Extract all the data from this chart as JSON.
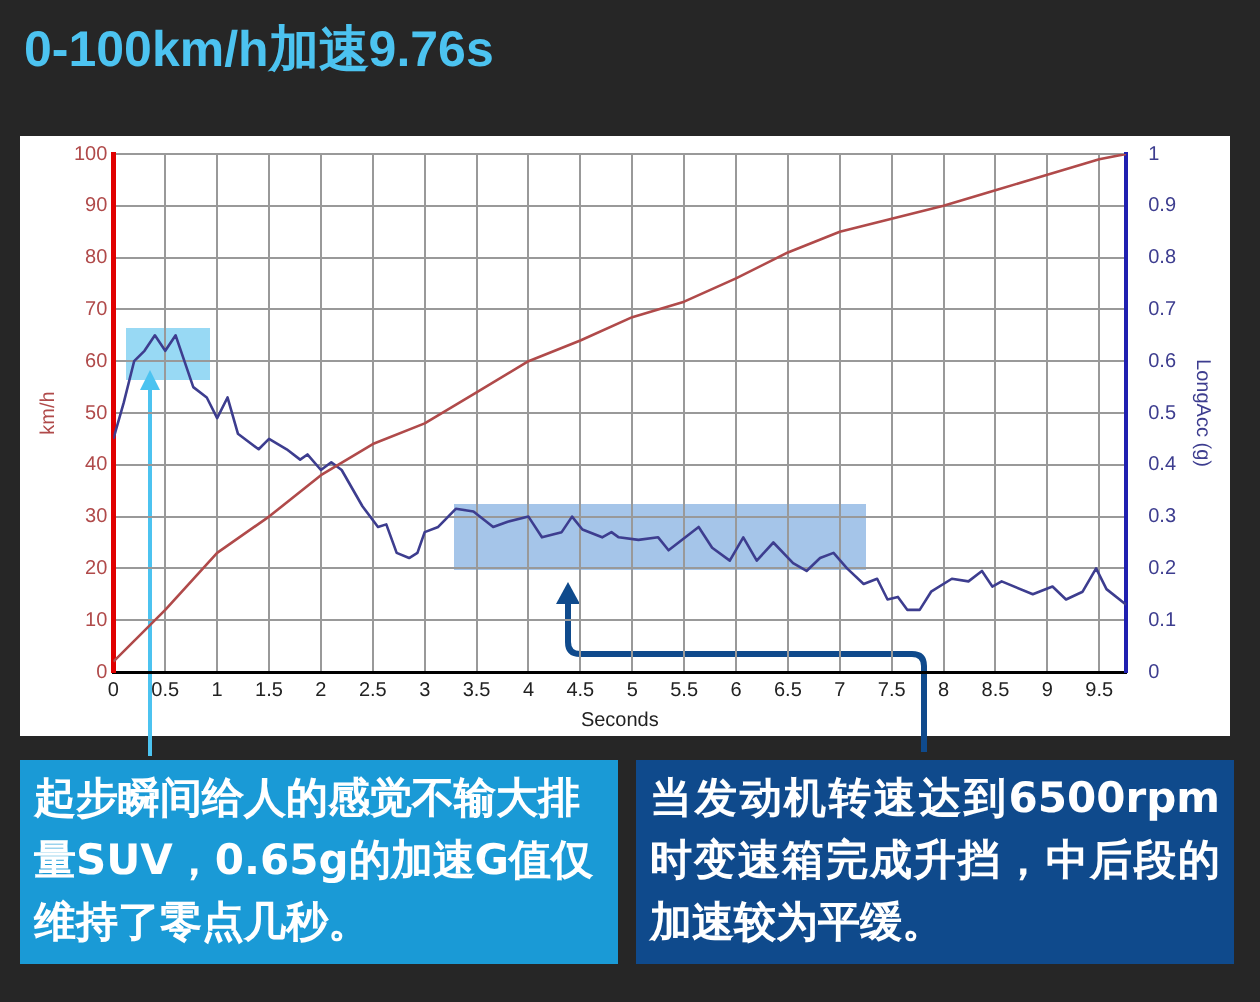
{
  "chart_data": {
    "type": "line",
    "title": "0-100km/h加速9.76s",
    "xlabel": "Seconds",
    "ylabel": "km/h",
    "y2label": "LongAcc (g)",
    "xlim": [
      0,
      9.76
    ],
    "xticks": [
      0,
      0.5,
      1,
      1.5,
      2,
      2.5,
      3,
      3.5,
      4,
      4.5,
      5,
      5.5,
      6,
      6.5,
      7,
      7.5,
      8,
      8.5,
      9,
      9.5
    ],
    "ylim": [
      0,
      100
    ],
    "yticks": [
      0,
      10,
      20,
      30,
      40,
      50,
      60,
      70,
      80,
      90,
      100
    ],
    "y2lim": [
      0,
      1
    ],
    "y2ticks": [
      0,
      0.1,
      0.2,
      0.3,
      0.4,
      0.5,
      0.6,
      0.7,
      0.8,
      0.9,
      1
    ],
    "grid": true,
    "legend": false,
    "marker": "none",
    "line_style": "solid",
    "series": [
      {
        "color": "#b04a4a",
        "x": [
          0,
          0.5,
          1,
          1.5,
          2,
          2.5,
          3,
          3.5,
          4,
          4.5,
          5,
          5.5,
          6,
          6.5,
          7,
          7.5,
          8,
          8.5,
          9,
          9.5,
          9.76
        ],
        "values": [
          2,
          12,
          23,
          30,
          38,
          44,
          48,
          54,
          60,
          64,
          68.5,
          71.5,
          76,
          81,
          85,
          87.5,
          90,
          93,
          96,
          99,
          100
        ]
      },
      {
        "color": "#3d3d8f",
        "axis": "y2",
        "x": [
          0,
          0.1,
          0.2,
          0.3,
          0.4,
          0.5,
          0.6,
          0.77,
          0.9,
          1,
          1.1,
          1.2,
          1.4,
          1.5,
          1.67,
          1.8,
          1.87,
          2,
          2.1,
          2.2,
          2.4,
          2.55,
          2.63,
          2.73,
          2.85,
          2.93,
          3,
          3.13,
          3.3,
          3.47,
          3.66,
          3.8,
          4,
          4.13,
          4.32,
          4.42,
          4.52,
          4.71,
          4.8,
          4.87,
          5.06,
          5.25,
          5.35,
          5.64,
          5.77,
          5.94,
          6.07,
          6.2,
          6.36,
          6.55,
          6.68,
          6.81,
          6.94,
          7.07,
          7.23,
          7.36,
          7.46,
          7.56,
          7.65,
          7.77,
          7.88,
          8.08,
          8.24,
          8.37,
          8.47,
          8.56,
          8.86,
          9.05,
          9.18,
          9.34,
          9.47,
          9.57,
          9.76
        ],
        "values": [
          0.45,
          0.52,
          0.6,
          0.62,
          0.65,
          0.62,
          0.65,
          0.55,
          0.53,
          0.49,
          0.53,
          0.46,
          0.43,
          0.45,
          0.43,
          0.41,
          0.42,
          0.39,
          0.405,
          0.39,
          0.32,
          0.28,
          0.285,
          0.23,
          0.22,
          0.23,
          0.27,
          0.28,
          0.315,
          0.31,
          0.28,
          0.29,
          0.3,
          0.26,
          0.27,
          0.3,
          0.275,
          0.26,
          0.27,
          0.26,
          0.255,
          0.26,
          0.235,
          0.28,
          0.24,
          0.215,
          0.26,
          0.215,
          0.25,
          0.21,
          0.195,
          0.22,
          0.23,
          0.2,
          0.17,
          0.18,
          0.14,
          0.145,
          0.12,
          0.12,
          0.155,
          0.18,
          0.175,
          0.195,
          0.165,
          0.175,
          0.15,
          0.165,
          0.14,
          0.155,
          0.2,
          0.16,
          0.13
        ]
      }
    ],
    "annotations": [
      "起步瞬间给人的感觉不输大排量SUV，0.65g的加速G值仅维持了零点几秒。",
      "当发动机转速达到6500rpm时变速箱完成升挡，中后段的加速较为平缓。"
    ]
  }
}
